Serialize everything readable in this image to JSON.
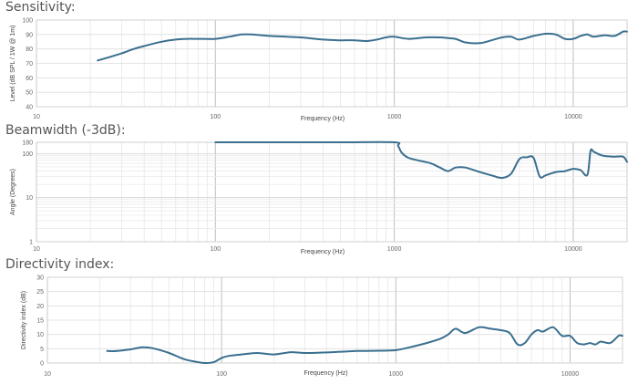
{
  "chart_data": [
    {
      "type": "line",
      "title": "Sensitivity:",
      "xlabel": "Frequency (Hz)",
      "ylabel": "Level (dB SPL / 1W @ 1m)",
      "xscale": "log",
      "xlim": [
        10,
        20000
      ],
      "ylim": [
        40,
        100
      ],
      "xticks": [
        "10",
        "100",
        "1000",
        "10000"
      ],
      "yticks": [
        "40",
        "50",
        "60",
        "70",
        "80",
        "90",
        "100"
      ],
      "grid": true,
      "line_color": "#3a6f8f",
      "series": [
        {
          "x": [
            22,
            25,
            30,
            35,
            40,
            50,
            60,
            70,
            80,
            100,
            120,
            140,
            160,
            200,
            250,
            300,
            400,
            500,
            600,
            700,
            800,
            900,
            1000,
            1200,
            1500,
            1800,
            2000,
            2200,
            2500,
            3000,
            3500,
            4000,
            4500,
            5000,
            6000,
            7000,
            8000,
            9000,
            10000,
            11000,
            12000,
            13000,
            15000,
            17000,
            19000,
            20000
          ],
          "y": [
            72,
            74,
            77,
            80,
            82,
            85,
            86.5,
            87,
            87,
            87,
            88.5,
            90,
            90,
            89,
            88.5,
            88,
            86.5,
            86,
            86,
            85.5,
            86.5,
            88,
            88.5,
            87,
            88,
            88,
            87.5,
            87,
            84.5,
            84,
            86,
            88,
            88.5,
            86.5,
            89,
            90.5,
            90,
            87,
            87,
            89,
            90,
            88.5,
            89.5,
            89,
            92,
            92
          ]
        }
      ]
    },
    {
      "type": "line",
      "title": "Beamwidth (-3dB):",
      "xlabel": "Frequency (Hz)",
      "ylabel": "Angle (Degrees)",
      "xscale": "log",
      "yscale": "log",
      "xlim": [
        10,
        20000
      ],
      "ylim": [
        1,
        180
      ],
      "xticks": [
        "10",
        "100",
        "1000",
        "10000"
      ],
      "yticks": [
        "1",
        "10",
        "100",
        "180"
      ],
      "grid": true,
      "line_color": "#3a6f8f",
      "series": [
        {
          "x": [
            100,
            200,
            500,
            1000,
            1050,
            1100,
            1200,
            1400,
            1600,
            1800,
            2000,
            2200,
            2500,
            3000,
            3500,
            4000,
            4500,
            5000,
            5500,
            6000,
            6500,
            7000,
            8000,
            9000,
            10000,
            11000,
            12000,
            12500,
            13000,
            14000,
            15000,
            17000,
            19000,
            20000
          ],
          "y": [
            180,
            180,
            180,
            180,
            150,
            105,
            80,
            68,
            60,
            48,
            40,
            48,
            48,
            38,
            32,
            28,
            35,
            75,
            82,
            80,
            30,
            32,
            38,
            40,
            45,
            42,
            33,
            115,
            110,
            95,
            88,
            85,
            85,
            65
          ]
        }
      ]
    },
    {
      "type": "line",
      "title": "Directivity index:",
      "xlabel": "Frequency (Hz)",
      "ylabel": "Directivity index (dB)",
      "xscale": "log",
      "xlim": [
        10,
        20000
      ],
      "ylim": [
        0,
        30
      ],
      "xticks": [
        "10",
        "100",
        "1000",
        "10000"
      ],
      "yticks": [
        "0",
        "5",
        "10",
        "15",
        "20",
        "25",
        "30"
      ],
      "grid": true,
      "line_color": "#3a6f8f",
      "series": [
        {
          "x": [
            22,
            25,
            30,
            35,
            40,
            50,
            60,
            70,
            80,
            90,
            100,
            110,
            130,
            160,
            200,
            250,
            300,
            400,
            500,
            600,
            800,
            1000,
            1200,
            1500,
            1800,
            2000,
            2200,
            2500,
            3000,
            3500,
            4000,
            4500,
            5000,
            5500,
            6000,
            6500,
            7000,
            8000,
            9000,
            10000,
            11000,
            12000,
            13000,
            14000,
            15000,
            17000,
            19000,
            20000
          ],
          "y": [
            4.2,
            4.2,
            4.8,
            5.5,
            5.2,
            3.5,
            1.5,
            0.5,
            0,
            0.3,
            1.8,
            2.5,
            3,
            3.5,
            3,
            3.8,
            3.5,
            3.7,
            4,
            4.2,
            4.3,
            4.5,
            5.5,
            7,
            8.5,
            10,
            12,
            10.5,
            12.5,
            12,
            11.5,
            10.5,
            6.5,
            7,
            10,
            11.5,
            11,
            12.5,
            9.5,
            9.5,
            7,
            6.5,
            7,
            6.5,
            7.5,
            7,
            9.5,
            9.5
          ]
        }
      ]
    }
  ]
}
